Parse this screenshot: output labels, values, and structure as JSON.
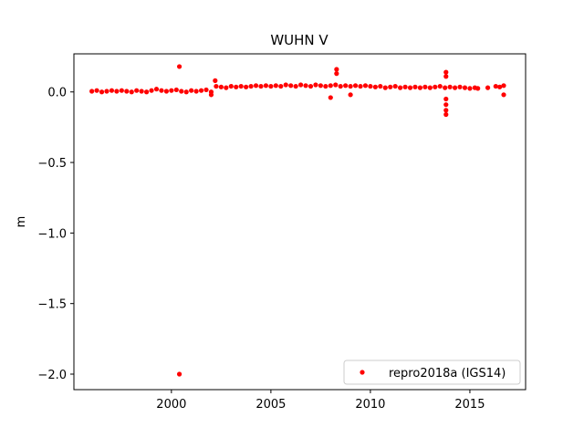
{
  "chart_data": {
    "type": "scatter",
    "title": "WUHN V",
    "y_label": "m",
    "x": [
      1996.0,
      1996.25,
      1996.5,
      1996.75,
      1997.0,
      1997.25,
      1997.5,
      1997.75,
      1998.0,
      1998.25,
      1998.5,
      1998.75,
      1999.0,
      1999.25,
      1999.5,
      1999.75,
      2000.0,
      2000.25,
      2000.5,
      2000.75,
      2001.0,
      2001.25,
      2001.5,
      2001.75,
      2002.0,
      2002.25,
      2002.5,
      2002.75,
      2003.0,
      2003.25,
      2003.5,
      2003.75,
      2004.0,
      2004.25,
      2004.5,
      2004.75,
      2005.0,
      2005.25,
      2005.5,
      2005.75,
      2006.0,
      2006.25,
      2006.5,
      2006.75,
      2007.0,
      2007.25,
      2007.5,
      2007.75,
      2008.0,
      2008.25,
      2008.5,
      2008.75,
      2009.0,
      2009.25,
      2009.5,
      2009.75,
      2010.0,
      2010.25,
      2010.5,
      2010.75,
      2011.0,
      2011.25,
      2011.5,
      2011.75,
      2012.0,
      2012.25,
      2012.5,
      2012.75,
      2013.0,
      2013.25,
      2013.5,
      2013.75,
      2014.0,
      2014.25,
      2014.5,
      2014.75,
      2015.0,
      2015.25,
      2015.4,
      2015.9,
      2016.3,
      2016.5,
      2016.7,
      2000.4,
      2000.4,
      2008.3,
      2008.3,
      2008.0,
      2009.0,
      2013.8,
      2013.8,
      2013.8,
      2013.8,
      2013.8,
      2013.8,
      2016.7,
      2002.0,
      2002.2
    ],
    "series": [
      {
        "name": "repro2018a (IGS14)",
        "color": "#ff0000",
        "values": [
          0.005,
          0.01,
          0.0,
          0.005,
          0.01,
          0.005,
          0.01,
          0.005,
          0.0,
          0.01,
          0.005,
          0.0,
          0.01,
          0.02,
          0.01,
          0.005,
          0.01,
          0.015,
          0.005,
          0.0,
          0.01,
          0.005,
          0.01,
          0.015,
          0.0,
          0.04,
          0.035,
          0.03,
          0.04,
          0.035,
          0.04,
          0.035,
          0.04,
          0.045,
          0.04,
          0.045,
          0.04,
          0.045,
          0.04,
          0.05,
          0.045,
          0.04,
          0.05,
          0.045,
          0.04,
          0.05,
          0.045,
          0.04,
          0.045,
          0.05,
          0.04,
          0.045,
          0.04,
          0.045,
          0.04,
          0.045,
          0.04,
          0.035,
          0.04,
          0.03,
          0.035,
          0.04,
          0.03,
          0.035,
          0.03,
          0.035,
          0.03,
          0.035,
          0.03,
          0.035,
          0.04,
          0.03,
          0.035,
          0.03,
          0.035,
          0.03,
          0.025,
          0.03,
          0.025,
          0.03,
          0.04,
          0.035,
          0.045,
          0.18,
          -2.0,
          0.16,
          0.13,
          -0.04,
          -0.02,
          0.14,
          0.11,
          -0.16,
          -0.13,
          -0.09,
          -0.05,
          -0.02,
          -0.02,
          0.08
        ]
      }
    ],
    "xlim": [
      1995.1,
      2017.8
    ],
    "xticks": [
      2000,
      2005,
      2010,
      2015
    ],
    "ylim": [
      -2.11,
      0.27
    ],
    "yticks": [
      {
        "value": -2.0,
        "label": "−2.0"
      },
      {
        "value": -1.5,
        "label": "−1.5"
      },
      {
        "value": -1.0,
        "label": "−1.0"
      },
      {
        "value": -0.5,
        "label": "−0.5"
      },
      {
        "value": 0.0,
        "label": "0.0"
      }
    ],
    "legend": "lower right"
  }
}
